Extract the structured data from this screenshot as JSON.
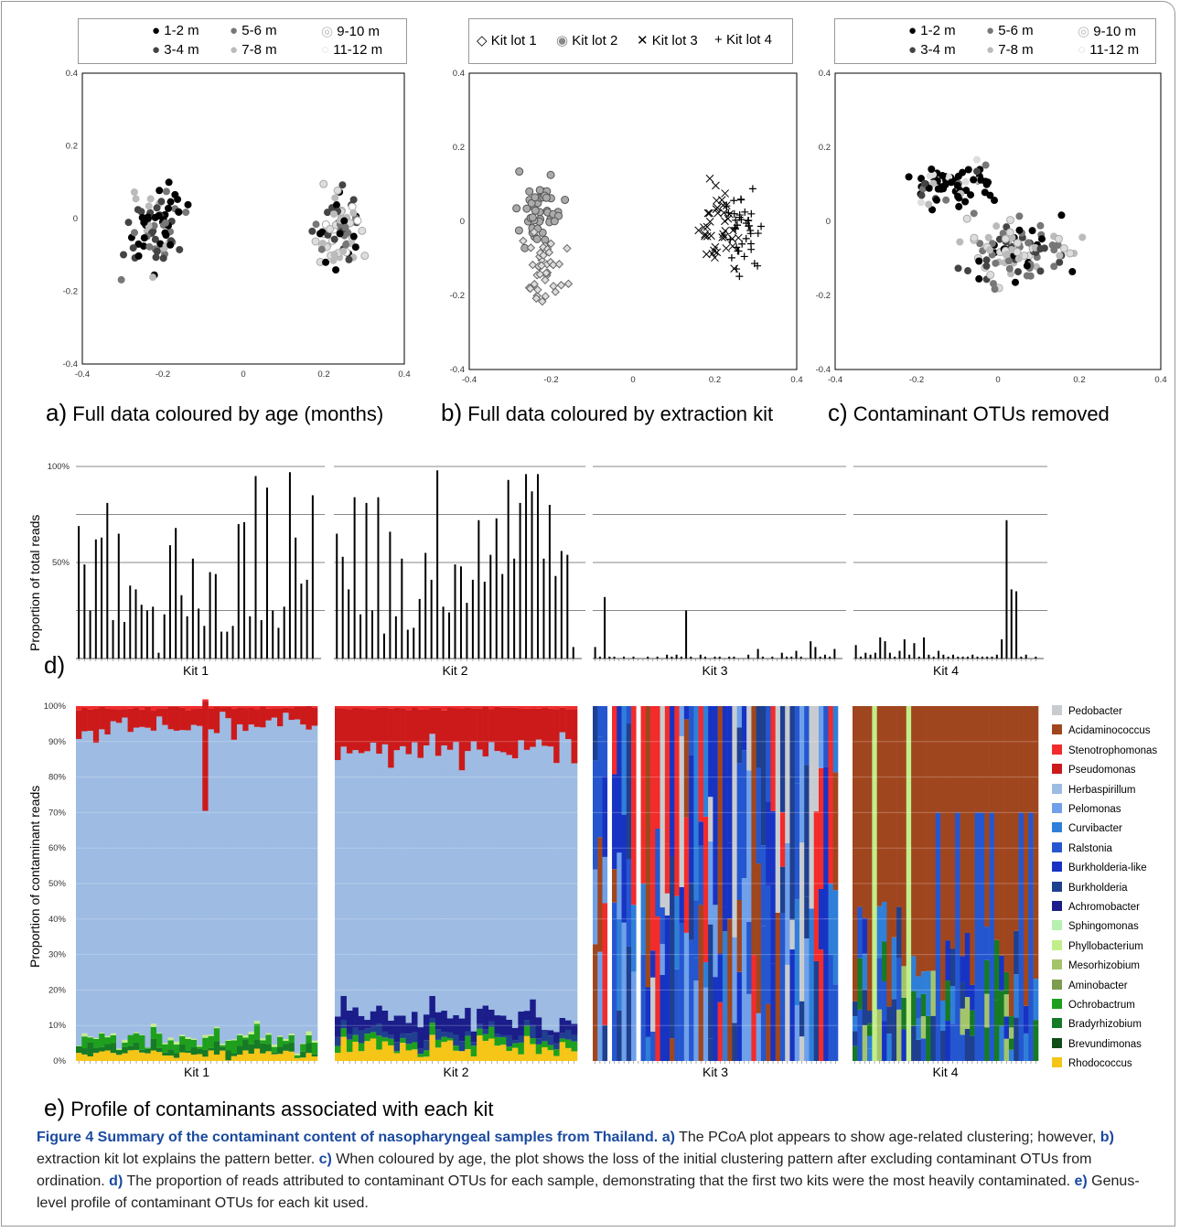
{
  "figure": {
    "panel_a": {
      "letter": "a)",
      "caption": "Full data coloured by age (months)"
    },
    "panel_b": {
      "letter": "b)",
      "caption": "Full data coloured by extraction kit"
    },
    "panel_c": {
      "letter": "c)",
      "caption": "Contaminant OTUs removed"
    },
    "panel_d": {
      "letter": "d)",
      "ylabel": "Proportion of total reads"
    },
    "panel_e": {
      "letter": "e)",
      "caption": "Profile of contaminants associated with each kit",
      "ylabel": "Proportion of contaminant reads"
    },
    "age_legend": [
      "1-2 m",
      "5-6 m",
      "9-10 m",
      "3-4 m",
      "7-8 m",
      "11-12 m"
    ],
    "kit_legend": [
      "Kit lot 1",
      "Kit lot 2",
      "Kit lot 3",
      "Kit lot 4"
    ],
    "kit_labels": [
      "Kit 1",
      "Kit 2",
      "Kit 3",
      "Kit 4"
    ],
    "pcoa_ticks_x": [
      "-0.4",
      "-0.2",
      "0",
      "0.2",
      "0.4"
    ],
    "pcoa_ticks_y": [
      "0.4",
      "0.2",
      "0",
      "-0.2",
      "-0.4"
    ],
    "bar_ticks_d": [
      "100%",
      "50%"
    ],
    "bar_ticks_e": [
      "100%",
      "90%",
      "80%",
      "70%",
      "60%",
      "50%",
      "40%",
      "30%",
      "20%",
      "10%",
      "0%"
    ]
  },
  "genera": [
    {
      "name": "Pedobacter",
      "color": "#c8ccd0"
    },
    {
      "name": "Acidaminococcus",
      "color": "#a0461e"
    },
    {
      "name": "Stenotrophomonas",
      "color": "#f22b2b"
    },
    {
      "name": "Pseudomonas",
      "color": "#cc1a1a"
    },
    {
      "name": "Herbaspirillum",
      "color": "#9dbbe3"
    },
    {
      "name": "Pelomonas",
      "color": "#6fa0ea"
    },
    {
      "name": "Curvibacter",
      "color": "#2f7fd9"
    },
    {
      "name": "Ralstonia",
      "color": "#2457cf"
    },
    {
      "name": "Burkholderia-like",
      "color": "#1733c4"
    },
    {
      "name": "Burkholderia",
      "color": "#1f3f8f"
    },
    {
      "name": "Achromobacter",
      "color": "#1a1d8a"
    },
    {
      "name": "Sphingomonas",
      "color": "#b8f0b0"
    },
    {
      "name": "Phyllobacterium",
      "color": "#c2ee8a"
    },
    {
      "name": "Mesorhizobium",
      "color": "#a4c46b"
    },
    {
      "name": "Aminobacter",
      "color": "#7e9e4f"
    },
    {
      "name": "Ochrobactrum",
      "color": "#1ea01e"
    },
    {
      "name": "Bradyrhizobium",
      "color": "#177a25"
    },
    {
      "name": "Brevundimonas",
      "color": "#0f4d1a"
    },
    {
      "name": "Rhodococcus",
      "color": "#f5c518"
    }
  ],
  "caption": {
    "title": "Figure 4 Summary of the contaminant content of nasopharyngeal samples from Thailand.",
    "a_ref": "a)",
    "a_text": " The PCoA plot appears to show age-related clustering; however, ",
    "b_ref": "b)",
    "b_text": " extraction kit lot explains the pattern better. ",
    "c_ref": "c)",
    "c_text": " When coloured by age, the plot shows the loss of the initial clustering pattern after excluding contaminant OTUs from ordination. ",
    "d_ref": "d)",
    "d_text": " The proportion of reads attributed to contaminant OTUs for each sample, demonstrating that the first two kits were the most heavily contaminated. ",
    "e_ref": "e)",
    "e_text": " Genus-level profile of contaminant OTUs for each kit used."
  },
  "chart_data": [
    {
      "type": "bar",
      "title": "",
      "ylabel": "Proportion of total reads",
      "ylim": [
        0,
        100
      ],
      "series": [
        {
          "name": "Kit 1",
          "values": [
            69,
            49,
            25,
            62,
            63,
            81,
            20,
            65,
            19,
            38,
            36,
            28,
            25,
            27,
            3,
            23,
            59,
            68,
            33,
            22,
            52,
            26,
            17,
            45,
            44,
            14,
            14,
            17,
            70,
            71,
            22,
            95,
            20,
            89,
            25,
            16,
            27,
            97,
            63,
            39,
            41,
            85
          ]
        },
        {
          "name": "Kit 2",
          "values": [
            65,
            53,
            36,
            84,
            23,
            81,
            25,
            84,
            13,
            66,
            22,
            52,
            15,
            16,
            31,
            55,
            41,
            98,
            27,
            24,
            49,
            48,
            29,
            41,
            72,
            40,
            54,
            73,
            44,
            93,
            52,
            81,
            96,
            87,
            96,
            52,
            80,
            43,
            56,
            54,
            6
          ]
        },
        {
          "name": "Kit 3",
          "values": [
            6,
            1,
            32,
            1,
            1,
            0,
            1,
            0,
            1,
            0,
            0,
            1,
            0,
            1,
            0,
            2,
            1,
            2,
            1,
            25,
            1,
            0,
            2,
            1,
            0,
            1,
            1,
            0,
            1,
            1,
            0,
            0,
            2,
            0,
            5,
            1,
            0,
            1,
            0,
            3,
            1,
            1,
            4,
            1,
            0,
            9,
            6,
            1,
            2,
            1,
            5
          ]
        },
        {
          "name": "Kit 4",
          "values": [
            7,
            1,
            3,
            2,
            3,
            11,
            9,
            3,
            1,
            4,
            10,
            2,
            8,
            1,
            11,
            2,
            1,
            4,
            2,
            1,
            2,
            1,
            1,
            1,
            2,
            1,
            1,
            1,
            1,
            2,
            10,
            72,
            36,
            35,
            1,
            2,
            0,
            1
          ]
        }
      ]
    },
    {
      "type": "bar",
      "title": "",
      "ylabel": "Proportion of contaminant reads",
      "ylim": [
        0,
        100
      ],
      "stacked": true,
      "categories": [
        "Kit 1",
        "Kit 2",
        "Kit 3",
        "Kit 4"
      ],
      "summary": {
        "Kit 1": {
          "Herbaspirillum": 87,
          "Pseudomonas": 6,
          "Stenotrophomonas": 1,
          "Bradyrhizobium": 3,
          "Ochrobactrum": 2,
          "Rhodococcus": 2
        },
        "Kit 2": {
          "Herbaspirillum": 72,
          "Pseudomonas": 12,
          "Achromobacter": 6,
          "Rhodococcus": 4,
          "Ochrobactrum": 3,
          "Bradyrhizobium": 3
        },
        "Kit 3": {
          "Ralstonia": 55,
          "Burkholderia-like": 20,
          "Curvibacter": 10,
          "Pelomonas": 6,
          "Pedobacter": 4,
          "Acidaminococcus": 3
        },
        "Kit 4": {
          "Acidaminococcus": 55,
          "Ralstonia": 15,
          "Burkholderia-like": 10,
          "Mesorhizobium": 8,
          "Bradyrhizobium": 5,
          "Pedobacter": 4
        }
      }
    }
  ]
}
